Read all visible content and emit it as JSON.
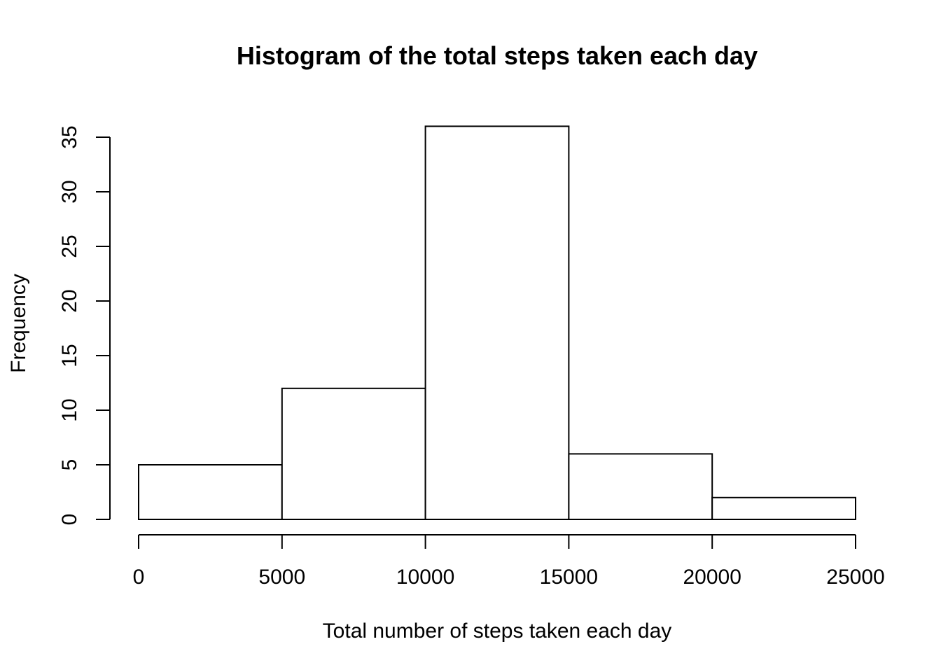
{
  "chart_data": {
    "type": "bar",
    "title": "Histogram of the total steps taken each day",
    "xlabel": "Total number of steps taken each day",
    "ylabel": "Frequency",
    "bins": [
      {
        "from": 0,
        "to": 5000,
        "count": 5
      },
      {
        "from": 5000,
        "to": 10000,
        "count": 12
      },
      {
        "from": 10000,
        "to": 15000,
        "count": 36
      },
      {
        "from": 15000,
        "to": 20000,
        "count": 6
      },
      {
        "from": 20000,
        "to": 25000,
        "count": 2
      }
    ],
    "xlim": [
      0,
      25000
    ],
    "ylim": [
      0,
      35
    ],
    "x_ticks": [
      0,
      5000,
      10000,
      15000,
      20000,
      25000
    ],
    "y_ticks": [
      0,
      5,
      10,
      15,
      20,
      25,
      30,
      35
    ],
    "grid": false,
    "bar_fill": "#ffffff",
    "bar_stroke": "#000000"
  }
}
